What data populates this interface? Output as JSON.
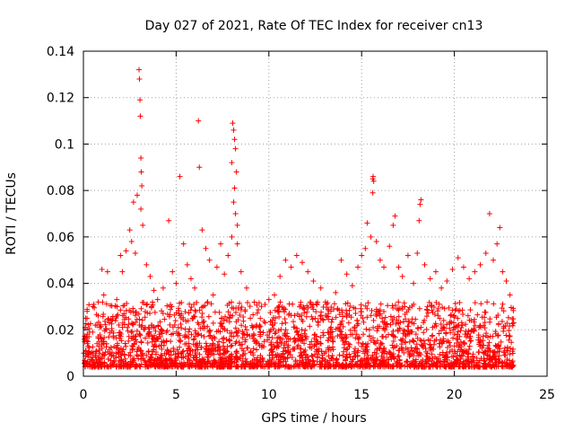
{
  "chart_data": {
    "type": "scatter",
    "title": "Day 027 of 2021, Rate Of TEC Index for receiver cn13",
    "xlabel": "GPS time / hours",
    "ylabel": "ROTI / TECUs",
    "xlim": [
      0,
      25
    ],
    "ylim": [
      0,
      0.14
    ],
    "x_ticks": [
      0,
      5,
      10,
      15,
      20,
      25
    ],
    "x_tick_labels": [
      "0",
      "5",
      "10",
      "15",
      "20",
      "25"
    ],
    "y_ticks": [
      0,
      0.02,
      0.04,
      0.06,
      0.08,
      0.1,
      0.12,
      0.14
    ],
    "y_tick_labels": [
      "0",
      "0.02",
      "0.04",
      "0.06",
      "0.08",
      "0.1",
      "0.12",
      "0.14"
    ],
    "grid": true,
    "marker": "+",
    "marker_color": "#ff0000",
    "series": [
      {
        "name": "ROTI",
        "points": [
          [
            0.1,
            0.021
          ],
          [
            0.2,
            0.028
          ],
          [
            0.3,
            0.017
          ],
          [
            0.5,
            0.019
          ],
          [
            0.8,
            0.026
          ],
          [
            1.0,
            0.046
          ],
          [
            1.1,
            0.035
          ],
          [
            1.3,
            0.045
          ],
          [
            1.5,
            0.024
          ],
          [
            1.8,
            0.033
          ],
          [
            2.0,
            0.052
          ],
          [
            2.1,
            0.045
          ],
          [
            2.3,
            0.054
          ],
          [
            2.5,
            0.063
          ],
          [
            2.6,
            0.058
          ],
          [
            2.7,
            0.075
          ],
          [
            2.8,
            0.053
          ],
          [
            2.9,
            0.078
          ],
          [
            3.0,
            0.132
          ],
          [
            3.02,
            0.128
          ],
          [
            3.05,
            0.119
          ],
          [
            3.07,
            0.112
          ],
          [
            3.1,
            0.094
          ],
          [
            3.12,
            0.088
          ],
          [
            3.15,
            0.082
          ],
          [
            3.1,
            0.072
          ],
          [
            3.2,
            0.065
          ],
          [
            3.4,
            0.048
          ],
          [
            3.6,
            0.043
          ],
          [
            3.8,
            0.037
          ],
          [
            4.0,
            0.033
          ],
          [
            4.3,
            0.038
          ],
          [
            4.6,
            0.067
          ],
          [
            4.8,
            0.045
          ],
          [
            5.0,
            0.04
          ],
          [
            5.2,
            0.086
          ],
          [
            5.4,
            0.057
          ],
          [
            5.6,
            0.048
          ],
          [
            5.8,
            0.042
          ],
          [
            6.0,
            0.038
          ],
          [
            6.2,
            0.11
          ],
          [
            6.25,
            0.09
          ],
          [
            6.4,
            0.063
          ],
          [
            6.6,
            0.055
          ],
          [
            6.8,
            0.05
          ],
          [
            7.0,
            0.035
          ],
          [
            7.2,
            0.047
          ],
          [
            7.4,
            0.057
          ],
          [
            7.6,
            0.044
          ],
          [
            7.8,
            0.052
          ],
          [
            8.0,
            0.092
          ],
          [
            8.05,
            0.109
          ],
          [
            8.1,
            0.106
          ],
          [
            8.15,
            0.102
          ],
          [
            8.2,
            0.098
          ],
          [
            8.25,
            0.088
          ],
          [
            8.15,
            0.081
          ],
          [
            8.1,
            0.075
          ],
          [
            8.2,
            0.07
          ],
          [
            8.3,
            0.065
          ],
          [
            8.0,
            0.06
          ],
          [
            8.3,
            0.057
          ],
          [
            8.5,
            0.045
          ],
          [
            8.8,
            0.038
          ],
          [
            9.0,
            0.025
          ],
          [
            9.5,
            0.022
          ],
          [
            10.0,
            0.033
          ],
          [
            10.3,
            0.035
          ],
          [
            10.6,
            0.043
          ],
          [
            10.9,
            0.05
          ],
          [
            11.2,
            0.047
          ],
          [
            11.5,
            0.052
          ],
          [
            11.8,
            0.049
          ],
          [
            12.1,
            0.045
          ],
          [
            12.4,
            0.041
          ],
          [
            12.8,
            0.038
          ],
          [
            13.2,
            0.027
          ],
          [
            13.6,
            0.036
          ],
          [
            13.9,
            0.05
          ],
          [
            14.2,
            0.044
          ],
          [
            14.5,
            0.039
          ],
          [
            14.8,
            0.047
          ],
          [
            15.0,
            0.052
          ],
          [
            15.2,
            0.055
          ],
          [
            15.3,
            0.066
          ],
          [
            15.5,
            0.06
          ],
          [
            15.6,
            0.085
          ],
          [
            15.62,
            0.086
          ],
          [
            15.65,
            0.084
          ],
          [
            15.6,
            0.079
          ],
          [
            15.8,
            0.058
          ],
          [
            16.0,
            0.05
          ],
          [
            16.2,
            0.047
          ],
          [
            16.5,
            0.056
          ],
          [
            16.7,
            0.065
          ],
          [
            16.8,
            0.069
          ],
          [
            17.0,
            0.047
          ],
          [
            17.2,
            0.043
          ],
          [
            17.5,
            0.052
          ],
          [
            17.8,
            0.04
          ],
          [
            18.0,
            0.053
          ],
          [
            18.1,
            0.067
          ],
          [
            18.15,
            0.074
          ],
          [
            18.2,
            0.076
          ],
          [
            18.4,
            0.048
          ],
          [
            18.7,
            0.042
          ],
          [
            19.0,
            0.045
          ],
          [
            19.3,
            0.038
          ],
          [
            19.6,
            0.041
          ],
          [
            19.9,
            0.046
          ],
          [
            20.2,
            0.051
          ],
          [
            20.5,
            0.047
          ],
          [
            20.8,
            0.042
          ],
          [
            21.1,
            0.045
          ],
          [
            21.4,
            0.048
          ],
          [
            21.7,
            0.053
          ],
          [
            21.9,
            0.07
          ],
          [
            22.1,
            0.05
          ],
          [
            22.3,
            0.057
          ],
          [
            22.45,
            0.064
          ],
          [
            22.6,
            0.045
          ],
          [
            22.8,
            0.041
          ],
          [
            23.0,
            0.035
          ],
          [
            23.2,
            0.023
          ]
        ]
      }
    ]
  }
}
